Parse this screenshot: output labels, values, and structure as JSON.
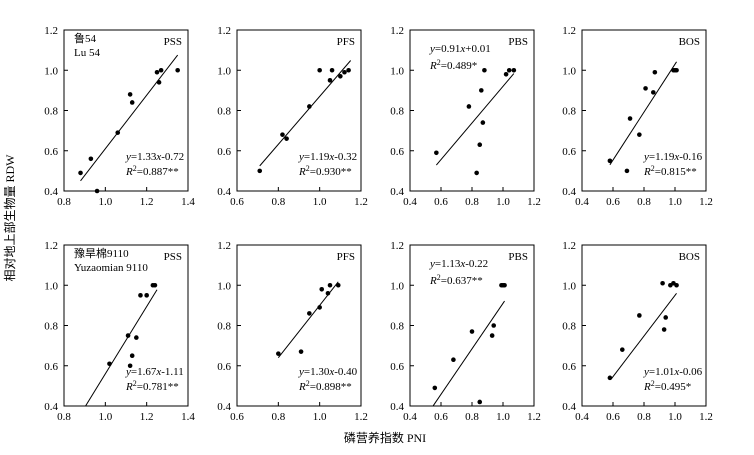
{
  "figure": {
    "ylabel": "相对地上部生物量 RDW",
    "xlabel": "磷营养指数 PNI"
  },
  "chart_data": [
    {
      "type": "scatter",
      "row": 0,
      "col": 0,
      "variety": [
        "鲁54",
        "Lu 54"
      ],
      "title": "PSS",
      "xlim": [
        0.8,
        1.4
      ],
      "ylim": [
        0.4,
        1.2
      ],
      "xticks": [
        "0.8",
        "1.0",
        "1.2",
        "1.4"
      ],
      "yticks": [
        "0.4",
        "0.6",
        "0.8",
        "1.0",
        "1.2"
      ],
      "points": [
        [
          0.88,
          0.49
        ],
        [
          0.93,
          0.56
        ],
        [
          0.96,
          0.4
        ],
        [
          1.06,
          0.69
        ],
        [
          1.12,
          0.88
        ],
        [
          1.13,
          0.84
        ],
        [
          1.25,
          0.99
        ],
        [
          1.26,
          0.94
        ],
        [
          1.27,
          1.0
        ],
        [
          1.35,
          1.0
        ]
      ],
      "fit": {
        "slope": 1.33,
        "intercept": -0.72,
        "x": [
          0.88,
          1.35
        ]
      },
      "equation": "y=1.33x-0.72",
      "r2": "R2=0.887**",
      "eq_pos": "bottom-right"
    },
    {
      "type": "scatter",
      "row": 0,
      "col": 1,
      "title": "PFS",
      "xlim": [
        0.6,
        1.2
      ],
      "ylim": [
        0.4,
        1.2
      ],
      "xticks": [
        "0.6",
        "0.8",
        "1.0",
        "1.2"
      ],
      "yticks": [
        "0.4",
        "0.6",
        "0.8",
        "1.0",
        "1.2"
      ],
      "points": [
        [
          0.71,
          0.5
        ],
        [
          0.82,
          0.68
        ],
        [
          0.84,
          0.66
        ],
        [
          0.95,
          0.82
        ],
        [
          1.0,
          1.0
        ],
        [
          1.05,
          0.95
        ],
        [
          1.06,
          1.0
        ],
        [
          1.1,
          0.97
        ],
        [
          1.12,
          0.99
        ],
        [
          1.14,
          1.0
        ]
      ],
      "fit": {
        "slope": 1.19,
        "intercept": -0.32,
        "x": [
          0.71,
          1.15
        ]
      },
      "equation": "y=1.19x-0.32",
      "r2": "R2=0.930**",
      "eq_pos": "bottom-right"
    },
    {
      "type": "scatter",
      "row": 0,
      "col": 2,
      "title": "PBS",
      "xlim": [
        0.4,
        1.2
      ],
      "ylim": [
        0.4,
        1.2
      ],
      "xticks": [
        "0.4",
        "0.6",
        "0.8",
        "1.0",
        "1.2"
      ],
      "yticks": [
        "0.4",
        "0.6",
        "0.8",
        "1.0",
        "1.2"
      ],
      "points": [
        [
          0.57,
          0.59
        ],
        [
          0.78,
          0.82
        ],
        [
          0.83,
          0.49
        ],
        [
          0.85,
          0.63
        ],
        [
          0.86,
          0.9
        ],
        [
          0.87,
          0.74
        ],
        [
          0.88,
          1.0
        ],
        [
          1.02,
          0.98
        ],
        [
          1.04,
          1.0
        ],
        [
          1.07,
          1.0
        ]
      ],
      "fit": {
        "slope": 0.91,
        "intercept": 0.01,
        "x": [
          0.57,
          1.07
        ]
      },
      "equation": "y=0.91x+0.01",
      "r2": "R2=0.489*",
      "eq_pos": "top-left"
    },
    {
      "type": "scatter",
      "row": 0,
      "col": 3,
      "title": "BOS",
      "xlim": [
        0.4,
        1.2
      ],
      "ylim": [
        0.4,
        1.2
      ],
      "xticks": [
        "0.4",
        "0.6",
        "0.8",
        "1.0",
        "1.2"
      ],
      "yticks": [
        "0.4",
        "0.6",
        "0.8",
        "1.0",
        "1.2"
      ],
      "points": [
        [
          0.58,
          0.55
        ],
        [
          0.69,
          0.5
        ],
        [
          0.71,
          0.76
        ],
        [
          0.77,
          0.68
        ],
        [
          0.81,
          0.91
        ],
        [
          0.86,
          0.89
        ],
        [
          0.87,
          0.99
        ],
        [
          0.99,
          1.0
        ],
        [
          1.0,
          1.0
        ],
        [
          1.01,
          1.0
        ]
      ],
      "fit": {
        "slope": 1.19,
        "intercept": -0.16,
        "x": [
          0.58,
          1.01
        ]
      },
      "equation": "y=1.19x-0.16",
      "r2": "R2=0.815**",
      "eq_pos": "bottom-right"
    },
    {
      "type": "scatter",
      "row": 1,
      "col": 0,
      "variety": [
        "豫旱棉9110",
        "Yuzaomian 9110"
      ],
      "title": "PSS",
      "xlim": [
        0.8,
        1.4
      ],
      "ylim": [
        0.4,
        1.2
      ],
      "xticks": [
        "0.8",
        "1.0",
        "1.2",
        "1.4"
      ],
      "yticks": [
        "0.4",
        "0.6",
        "0.8",
        "1.0",
        "1.2"
      ],
      "points": [
        [
          1.02,
          0.61
        ],
        [
          1.11,
          0.75
        ],
        [
          1.12,
          0.6
        ],
        [
          1.13,
          0.65
        ],
        [
          1.15,
          0.74
        ],
        [
          1.17,
          0.95
        ],
        [
          1.2,
          0.95
        ],
        [
          1.23,
          1.0
        ],
        [
          1.24,
          1.0
        ]
      ],
      "fit": {
        "slope": 1.67,
        "intercept": -1.11,
        "x": [
          0.905,
          1.25
        ]
      },
      "equation": "y=1.67x-1.11",
      "r2": "R2=0.781**",
      "eq_pos": "bottom-right"
    },
    {
      "type": "scatter",
      "row": 1,
      "col": 1,
      "title": "PFS",
      "xlim": [
        0.6,
        1.2
      ],
      "ylim": [
        0.4,
        1.2
      ],
      "xticks": [
        "0.6",
        "0.8",
        "1.0",
        "1.2"
      ],
      "yticks": [
        "0.4",
        "0.6",
        "0.8",
        "1.0",
        "1.2"
      ],
      "points": [
        [
          0.8,
          0.66
        ],
        [
          0.91,
          0.67
        ],
        [
          0.95,
          0.86
        ],
        [
          1.0,
          0.89
        ],
        [
          1.01,
          0.98
        ],
        [
          1.04,
          0.96
        ],
        [
          1.05,
          1.0
        ],
        [
          1.09,
          1.0
        ]
      ],
      "fit": {
        "slope": 1.3,
        "intercept": -0.4,
        "x": [
          0.8,
          1.09
        ]
      },
      "equation": "y=1.30x-0.40",
      "r2": "R2=0.898**",
      "eq_pos": "bottom-right"
    },
    {
      "type": "scatter",
      "row": 1,
      "col": 2,
      "title": "PBS",
      "xlim": [
        0.4,
        1.2
      ],
      "ylim": [
        0.4,
        1.2
      ],
      "xticks": [
        "0.4",
        "0.6",
        "0.8",
        "1.0",
        "1.2"
      ],
      "yticks": [
        "0.4",
        "0.6",
        "0.8",
        "1.0",
        "1.2"
      ],
      "points": [
        [
          0.56,
          0.49
        ],
        [
          0.68,
          0.63
        ],
        [
          0.8,
          0.77
        ],
        [
          0.85,
          0.42
        ],
        [
          0.93,
          0.75
        ],
        [
          0.94,
          0.8
        ],
        [
          0.99,
          1.0
        ],
        [
          1.0,
          1.0
        ],
        [
          1.01,
          1.0
        ]
      ],
      "fit": {
        "slope": 1.13,
        "intercept": -0.22,
        "x": [
          0.55,
          1.01
        ]
      },
      "equation": "y=1.13x-0.22",
      "r2": "R2=0.637**",
      "eq_pos": "top-left"
    },
    {
      "type": "scatter",
      "row": 1,
      "col": 3,
      "title": "BOS",
      "xlim": [
        0.4,
        1.2
      ],
      "ylim": [
        0.4,
        1.2
      ],
      "xticks": [
        "0.4",
        "0.6",
        "0.8",
        "1.0",
        "1.2"
      ],
      "yticks": [
        "0.4",
        "0.6",
        "0.8",
        "1.0",
        "1.2"
      ],
      "points": [
        [
          0.58,
          0.54
        ],
        [
          0.66,
          0.68
        ],
        [
          0.77,
          0.85
        ],
        [
          0.92,
          1.01
        ],
        [
          0.93,
          0.78
        ],
        [
          0.94,
          0.84
        ],
        [
          0.97,
          1.0
        ],
        [
          0.99,
          1.01
        ],
        [
          1.01,
          1.0
        ]
      ],
      "fit": {
        "slope": 1.01,
        "intercept": -0.06,
        "x": [
          0.59,
          1.01
        ]
      },
      "equation": "y=1.01x-0.06",
      "r2": "R2=0.495*",
      "eq_pos": "bottom-right"
    }
  ]
}
